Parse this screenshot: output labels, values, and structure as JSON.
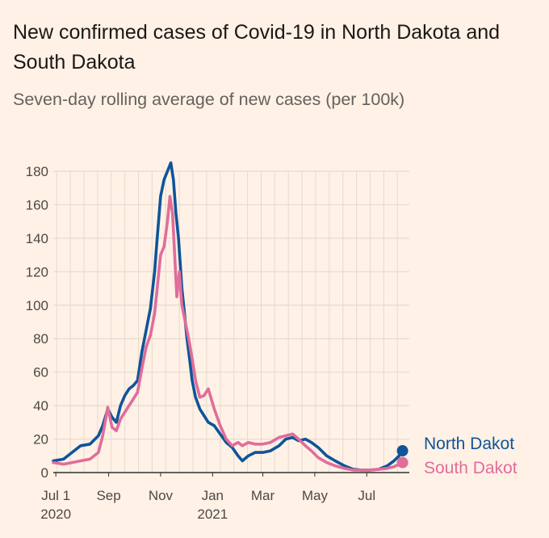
{
  "title": "New confirmed cases of Covid-19 in North Dakota and South Dakota",
  "subtitle": "Seven-day rolling average of new cases (per 100k)",
  "colors": {
    "background": "#fff1e5",
    "north_dakota": "#0f5499",
    "south_dakota": "#e06d9a",
    "grid": "#e6d9ce",
    "axis": "#33302e"
  },
  "chart_data": {
    "type": "line",
    "title": "New confirmed cases of Covid-19 in North Dakota and South Dakota",
    "subtitle": "Seven-day rolling average of new cases (per 100k)",
    "xlabel": "",
    "ylabel": "",
    "x_range": [
      "2020-06-28",
      "2021-08-20"
    ],
    "ylim": [
      0,
      180
    ],
    "y_ticks": [
      0,
      20,
      40,
      60,
      80,
      100,
      120,
      140,
      160,
      180
    ],
    "x_ticks": [
      {
        "date": "2020-07-01",
        "label": "Jul 1",
        "sublabel": "2020"
      },
      {
        "date": "2020-09-01",
        "label": "Sep",
        "sublabel": ""
      },
      {
        "date": "2020-11-01",
        "label": "Nov",
        "sublabel": ""
      },
      {
        "date": "2021-01-01",
        "label": "Jan",
        "sublabel": "2021"
      },
      {
        "date": "2021-03-01",
        "label": "Mar",
        "sublabel": ""
      },
      {
        "date": "2021-05-01",
        "label": "May",
        "sublabel": ""
      },
      {
        "date": "2021-07-01",
        "label": "Jul",
        "sublabel": ""
      }
    ],
    "grid": true,
    "legend": "end-of-line labels (right)",
    "series": [
      {
        "name": "North Dakot",
        "color": "#0f5499",
        "points": [
          [
            "2020-06-28",
            7
          ],
          [
            "2020-07-10",
            8
          ],
          [
            "2020-07-20",
            12
          ],
          [
            "2020-07-30",
            16
          ],
          [
            "2020-08-10",
            17
          ],
          [
            "2020-08-20",
            22
          ],
          [
            "2020-08-25",
            28
          ],
          [
            "2020-08-31",
            38
          ],
          [
            "2020-09-05",
            33
          ],
          [
            "2020-09-10",
            30
          ],
          [
            "2020-09-15",
            40
          ],
          [
            "2020-09-20",
            46
          ],
          [
            "2020-09-25",
            50
          ],
          [
            "2020-09-30",
            52
          ],
          [
            "2020-10-05",
            55
          ],
          [
            "2020-10-10",
            72
          ],
          [
            "2020-10-15",
            85
          ],
          [
            "2020-10-20",
            98
          ],
          [
            "2020-10-25",
            120
          ],
          [
            "2020-10-28",
            140
          ],
          [
            "2020-11-01",
            165
          ],
          [
            "2020-11-05",
            175
          ],
          [
            "2020-11-09",
            180
          ],
          [
            "2020-11-13",
            185
          ],
          [
            "2020-11-16",
            175
          ],
          [
            "2020-11-19",
            155
          ],
          [
            "2020-11-22",
            140
          ],
          [
            "2020-11-26",
            110
          ],
          [
            "2020-11-29",
            95
          ],
          [
            "2020-12-02",
            80
          ],
          [
            "2020-12-05",
            68
          ],
          [
            "2020-12-08",
            55
          ],
          [
            "2020-12-12",
            45
          ],
          [
            "2020-12-17",
            38
          ],
          [
            "2020-12-22",
            34
          ],
          [
            "2020-12-27",
            30
          ],
          [
            "2021-01-03",
            28
          ],
          [
            "2021-01-10",
            23
          ],
          [
            "2021-01-17",
            18
          ],
          [
            "2021-01-24",
            15
          ],
          [
            "2021-01-31",
            10
          ],
          [
            "2021-02-05",
            7
          ],
          [
            "2021-02-12",
            10
          ],
          [
            "2021-02-20",
            12
          ],
          [
            "2021-03-01",
            12
          ],
          [
            "2021-03-10",
            13
          ],
          [
            "2021-03-20",
            16
          ],
          [
            "2021-03-28",
            20
          ],
          [
            "2021-04-05",
            21
          ],
          [
            "2021-04-12",
            19
          ],
          [
            "2021-04-20",
            20
          ],
          [
            "2021-04-27",
            18
          ],
          [
            "2021-05-05",
            15
          ],
          [
            "2021-05-15",
            10
          ],
          [
            "2021-05-25",
            7
          ],
          [
            "2021-06-05",
            4
          ],
          [
            "2021-06-15",
            2
          ],
          [
            "2021-06-25",
            1.5
          ],
          [
            "2021-07-05",
            1.5
          ],
          [
            "2021-07-15",
            2
          ],
          [
            "2021-07-25",
            4
          ],
          [
            "2021-08-02",
            7
          ],
          [
            "2021-08-08",
            10
          ],
          [
            "2021-08-12",
            13
          ]
        ]
      },
      {
        "name": "South Dakot",
        "color": "#e06d9a",
        "points": [
          [
            "2020-06-28",
            6
          ],
          [
            "2020-07-10",
            5
          ],
          [
            "2020-07-20",
            6
          ],
          [
            "2020-07-30",
            7
          ],
          [
            "2020-08-10",
            8
          ],
          [
            "2020-08-20",
            12
          ],
          [
            "2020-08-25",
            22
          ],
          [
            "2020-08-31",
            39
          ],
          [
            "2020-09-05",
            27
          ],
          [
            "2020-09-10",
            25
          ],
          [
            "2020-09-15",
            32
          ],
          [
            "2020-09-20",
            36
          ],
          [
            "2020-09-25",
            40
          ],
          [
            "2020-09-30",
            44
          ],
          [
            "2020-10-05",
            48
          ],
          [
            "2020-10-10",
            62
          ],
          [
            "2020-10-15",
            75
          ],
          [
            "2020-10-20",
            82
          ],
          [
            "2020-10-25",
            95
          ],
          [
            "2020-10-28",
            110
          ],
          [
            "2020-11-01",
            130
          ],
          [
            "2020-11-05",
            135
          ],
          [
            "2020-11-09",
            150
          ],
          [
            "2020-11-12",
            165
          ],
          [
            "2020-11-15",
            155
          ],
          [
            "2020-11-18",
            125
          ],
          [
            "2020-11-20",
            105
          ],
          [
            "2020-11-23",
            120
          ],
          [
            "2020-11-26",
            100
          ],
          [
            "2020-11-30",
            90
          ],
          [
            "2020-12-04",
            80
          ],
          [
            "2020-12-08",
            68
          ],
          [
            "2020-12-12",
            55
          ],
          [
            "2020-12-17",
            45
          ],
          [
            "2020-12-22",
            46
          ],
          [
            "2020-12-27",
            50
          ],
          [
            "2021-01-03",
            38
          ],
          [
            "2021-01-10",
            28
          ],
          [
            "2021-01-17",
            20
          ],
          [
            "2021-01-24",
            16
          ],
          [
            "2021-01-31",
            18
          ],
          [
            "2021-02-05",
            16
          ],
          [
            "2021-02-12",
            18
          ],
          [
            "2021-02-20",
            17
          ],
          [
            "2021-03-01",
            17
          ],
          [
            "2021-03-10",
            18
          ],
          [
            "2021-03-20",
            21
          ],
          [
            "2021-03-28",
            22
          ],
          [
            "2021-04-05",
            23
          ],
          [
            "2021-04-12",
            20
          ],
          [
            "2021-04-20",
            16
          ],
          [
            "2021-04-27",
            13
          ],
          [
            "2021-05-05",
            9
          ],
          [
            "2021-05-15",
            6
          ],
          [
            "2021-05-25",
            4
          ],
          [
            "2021-06-05",
            2.5
          ],
          [
            "2021-06-15",
            1.5
          ],
          [
            "2021-06-25",
            1.5
          ],
          [
            "2021-07-05",
            1.5
          ],
          [
            "2021-07-15",
            2
          ],
          [
            "2021-07-25",
            2.5
          ],
          [
            "2021-08-02",
            3.5
          ],
          [
            "2021-08-08",
            5
          ],
          [
            "2021-08-12",
            6
          ]
        ]
      }
    ]
  }
}
